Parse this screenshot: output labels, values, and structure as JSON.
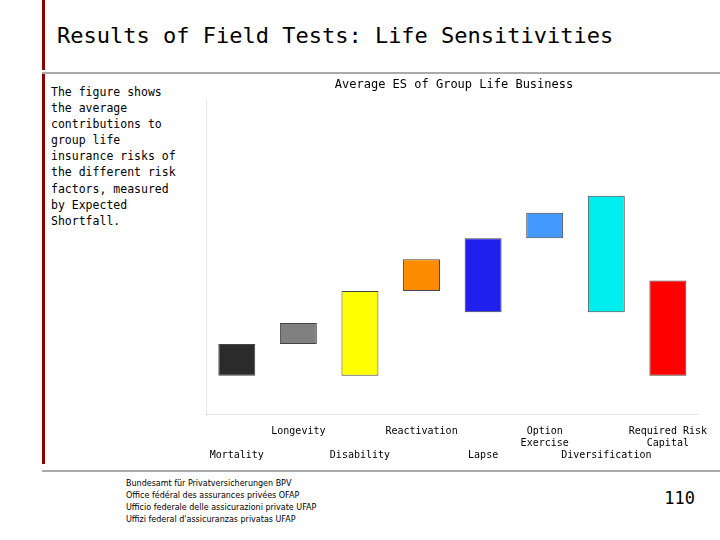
{
  "chart_data": {
    "type": "bar",
    "title": "Results of Field Tests: Life Sensitivities",
    "subtitle": "Average ES of Group Life Business",
    "description": "The figure shows\nthe average\ncontributions to\ngroup life\ninsurance risks of\nthe different risk\nfactors, measured\nby Expected\nShortfall.",
    "footer": [
      "Bundesamt für Privatversicherungen BPV",
      "Office fédéral des assurances privées OFAP",
      "Ufficio federale delle assicurazioni private UFAP",
      "Uffizi federal d'assicuranzas privatas UFAP"
    ],
    "page_number": "110",
    "categories": [
      "Mortality",
      "Longevity",
      "Disability",
      "Reactivation",
      "Lapse",
      "Option\nExercise",
      "Diversification",
      "Required Risk\nCapital"
    ],
    "values": [
      1.5,
      1.0,
      4.0,
      1.5,
      3.5,
      1.2,
      5.5,
      4.5
    ],
    "bottoms": [
      0,
      1.5,
      0,
      4.0,
      3.0,
      6.5,
      3.0,
      0
    ],
    "colors": [
      "#2B2B2B",
      "#808080",
      "#FFFF00",
      "#FF8C00",
      "#2020EE",
      "#4499FF",
      "#00EEEE",
      "#FF0000"
    ],
    "ylim": [
      -1.8,
      13.0
    ],
    "grid": false,
    "tick_labels": "x"
  }
}
